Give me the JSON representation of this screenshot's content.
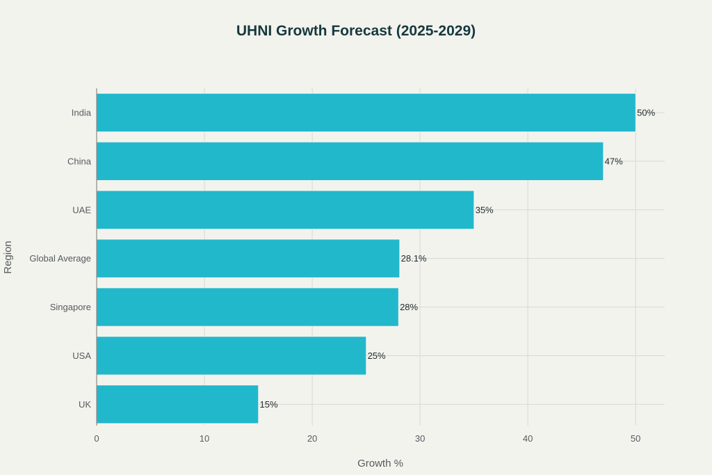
{
  "chart_data": {
    "type": "bar",
    "orientation": "horizontal",
    "title": "UHNI Growth Forecast (2025-2029)",
    "xlabel": "Growth %",
    "ylabel": "Region",
    "categories": [
      "India",
      "China",
      "UAE",
      "Global Average",
      "Singapore",
      "USA",
      "UK"
    ],
    "values": [
      50,
      47,
      35,
      28.1,
      28,
      25,
      15
    ],
    "data_labels": [
      "50%",
      "47%",
      "35%",
      "28.1%",
      "28%",
      "25%",
      "15%"
    ],
    "xlim": [
      0,
      52.7
    ],
    "xticks": [
      0,
      10,
      20,
      30,
      40,
      50
    ],
    "xtick_labels": [
      "0",
      "10",
      "20",
      "30",
      "40",
      "50"
    ],
    "grid": true,
    "legend": "none"
  },
  "colors": {
    "background": "#f3f3ee",
    "bar": "#21b8cc",
    "bar_edge": "#f3f3ee",
    "title": "#16393d",
    "text": "#555b5e",
    "data_label": "#1f2a2c",
    "grid": "#d9d9d4",
    "axis": "#8a8a86"
  }
}
